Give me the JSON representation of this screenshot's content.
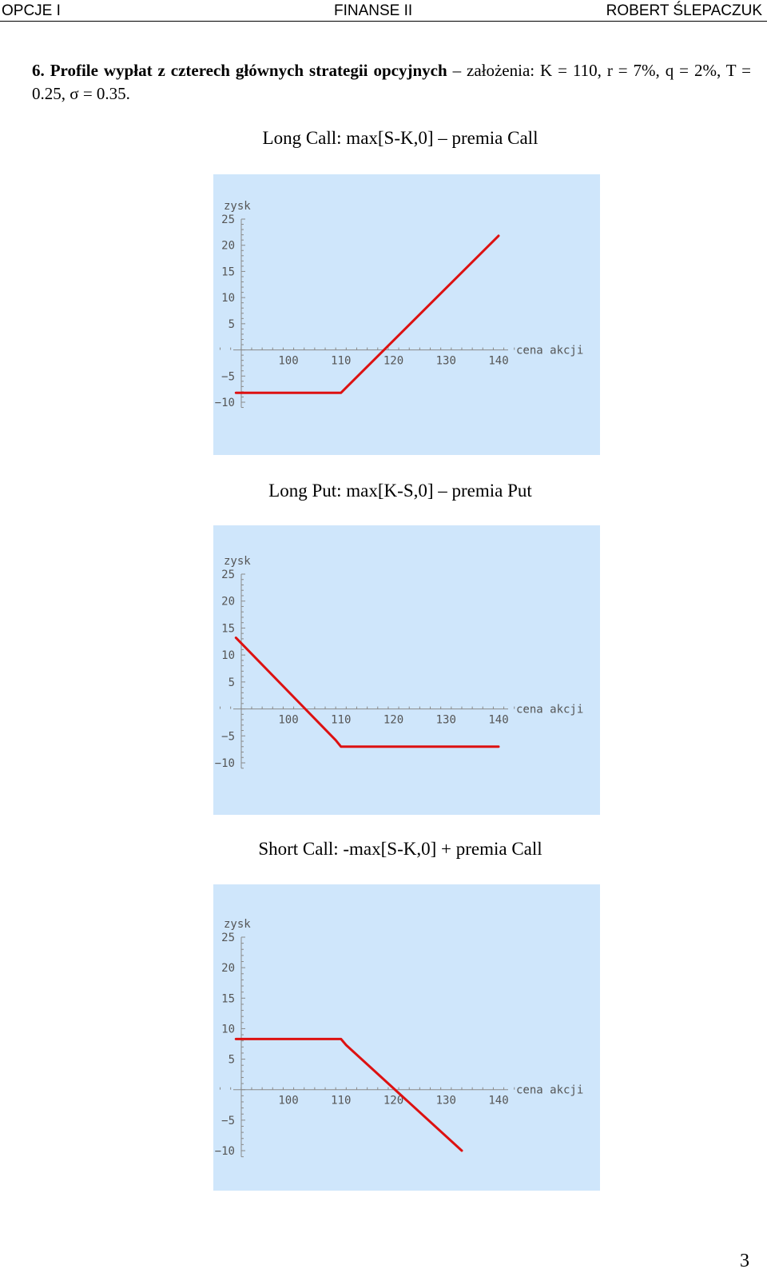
{
  "header": {
    "left": "OPCJE I",
    "center": "FINANSE II",
    "right": "ROBERT ŚLEPACZUK"
  },
  "section": {
    "number": "6.",
    "title_bold": "Profile wypłat z czterech głównych strategii opcyjnych",
    "title_rest": " – założenia: K = 110, r = 7%, q = 2%, T = 0.25, σ = 0.35."
  },
  "charts": [
    {
      "title": "Long Call: max[S-K,0] – premia Call"
    },
    {
      "title": "Long Put: max[K-S,0] – premia Put"
    },
    {
      "title": "Short Call: -max[S-K,0] + premia Call"
    }
  ],
  "chart_data": [
    {
      "type": "line",
      "xlabel": "cena akcji",
      "ylabel": "zysk",
      "x_ticks": [
        100,
        110,
        120,
        130,
        140
      ],
      "y_ticks": [
        -10,
        -5,
        5,
        10,
        15,
        20,
        25
      ],
      "xlim": [
        90,
        145
      ],
      "ylim": [
        -11,
        25
      ],
      "series": [
        {
          "x": [
            90,
            110,
            111,
            140
          ],
          "y": [
            -8.2,
            -8.2,
            -7.2,
            21.8
          ]
        }
      ]
    },
    {
      "type": "line",
      "xlabel": "cena akcji",
      "ylabel": "zysk",
      "x_ticks": [
        100,
        110,
        120,
        130,
        140
      ],
      "y_ticks": [
        -10,
        -5,
        5,
        10,
        15,
        20,
        25
      ],
      "xlim": [
        90,
        145
      ],
      "ylim": [
        -11,
        25
      ],
      "series": [
        {
          "x": [
            90,
            109,
            110,
            140
          ],
          "y": [
            13.2,
            -5.8,
            -7.0,
            -7.0
          ]
        }
      ]
    },
    {
      "type": "line",
      "xlabel": "cena akcji",
      "ylabel": "zysk",
      "x_ticks": [
        100,
        110,
        120,
        130,
        140
      ],
      "y_ticks": [
        -10,
        -5,
        5,
        10,
        15,
        20,
        25
      ],
      "xlim": [
        90,
        145
      ],
      "ylim": [
        -11,
        25
      ],
      "series": [
        {
          "x": [
            90,
            110,
            111,
            133
          ],
          "y": [
            8.3,
            8.3,
            7.3,
            -10.0
          ]
        }
      ]
    }
  ]
}
